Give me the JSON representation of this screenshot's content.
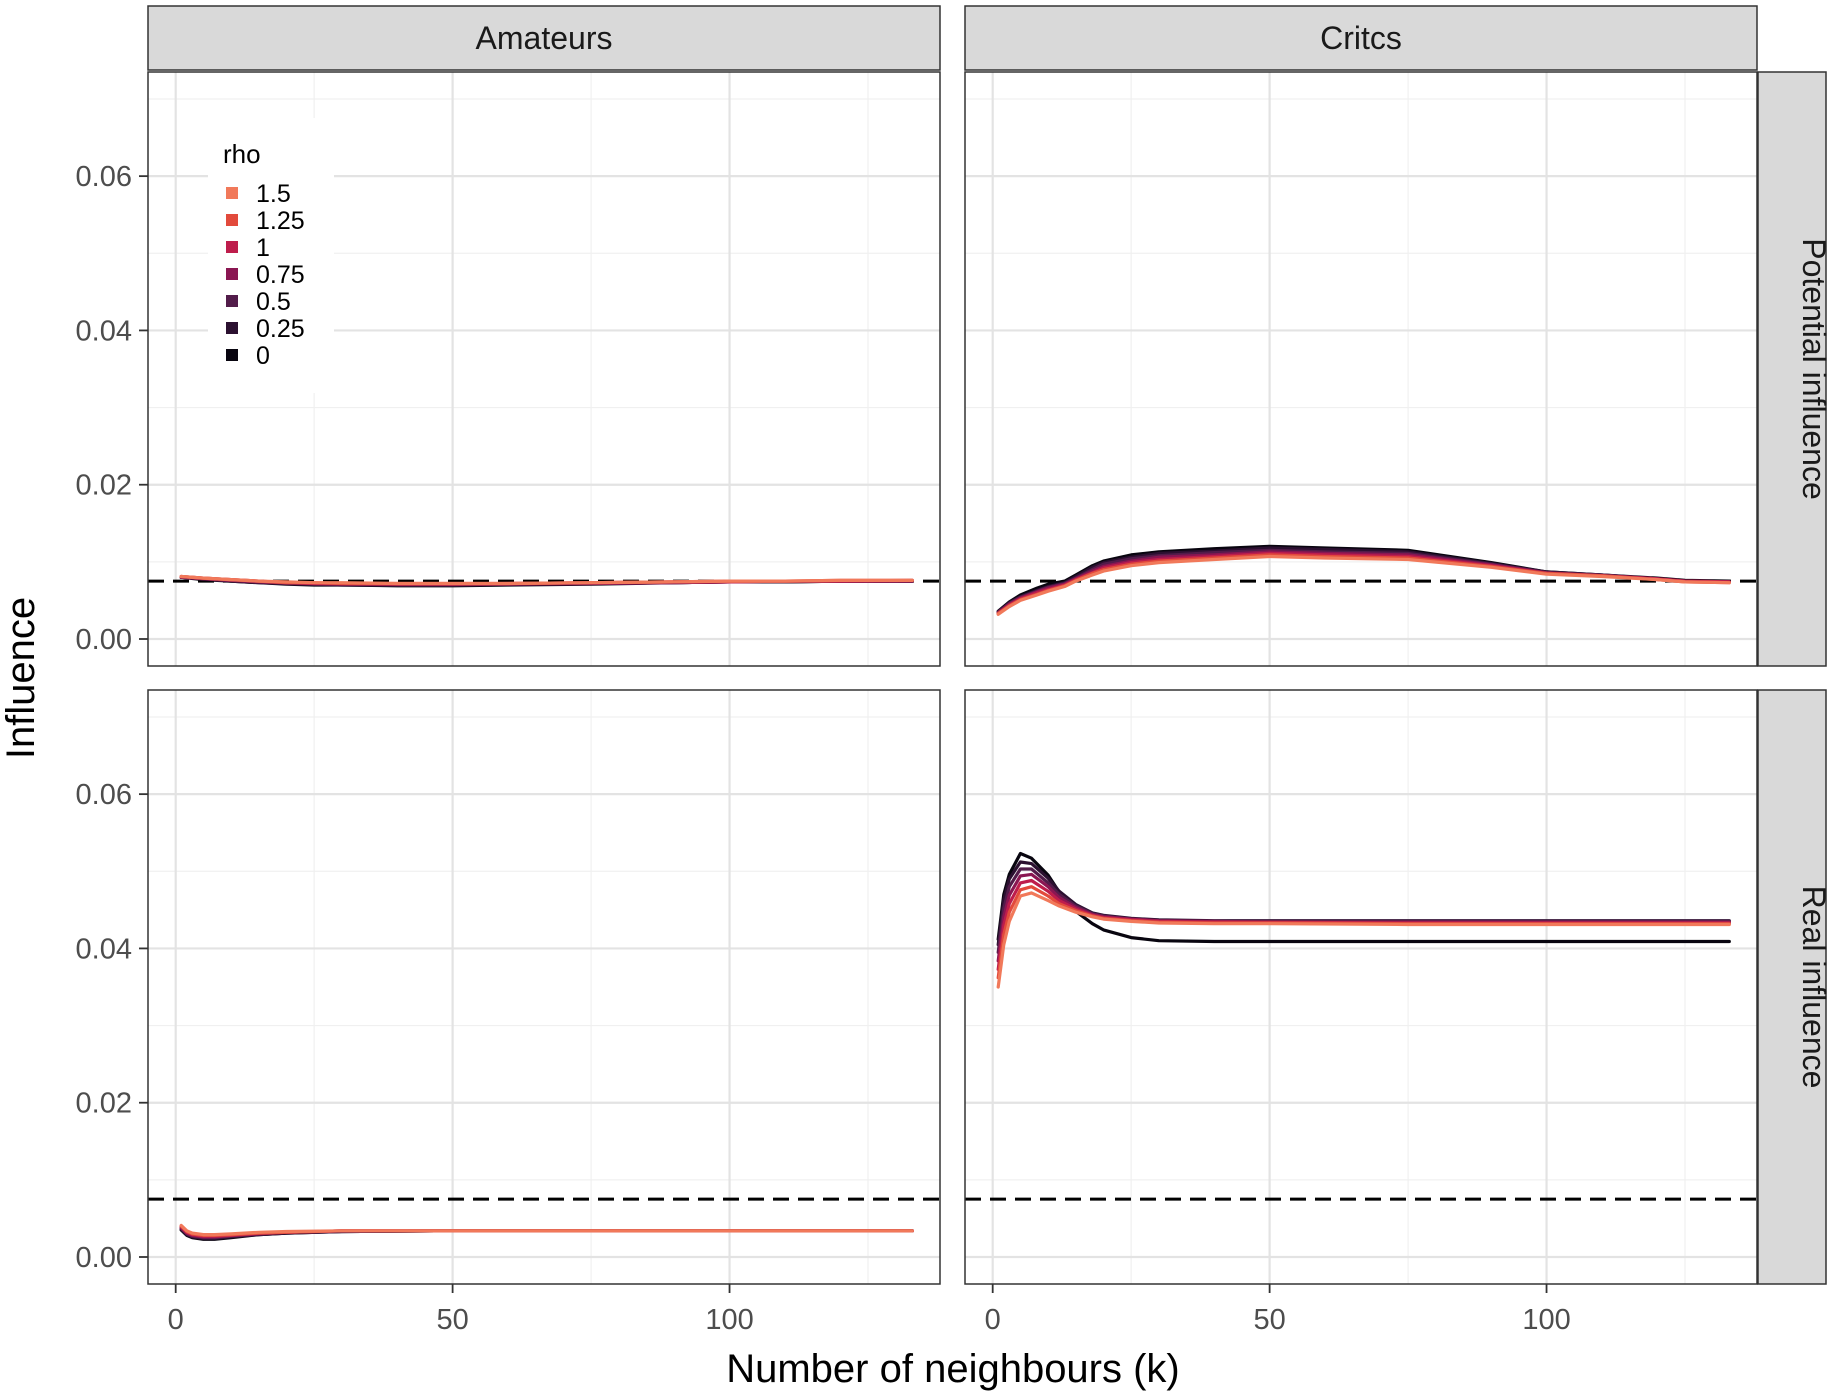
{
  "chart_data": {
    "type": "line",
    "xlabel": "Number of neighbours (k)",
    "ylabel": "Influence",
    "xlim": [
      -5,
      138
    ],
    "ylim": [
      -0.0035,
      0.0735
    ],
    "x_ticks": [
      "0",
      "50",
      "100"
    ],
    "y_ticks": [
      "0.00",
      "0.02",
      "0.04",
      "0.06"
    ],
    "grid": true,
    "legend": {
      "title": "rho",
      "placement": "top-left inside first panel"
    },
    "columns": [
      "Amateurs",
      "Critcs"
    ],
    "rows": [
      "Potential influence",
      "Real influence"
    ],
    "reference_line": {
      "y": 0.0075,
      "style": "dashed",
      "color": "#000000"
    },
    "series_styles": [
      {
        "name": "1.5",
        "color": "#F1795A"
      },
      {
        "name": "1.25",
        "color": "#E24A3C"
      },
      {
        "name": "1",
        "color": "#BE1D4C"
      },
      {
        "name": "0.75",
        "color": "#8A1652"
      },
      {
        "name": "0.5",
        "color": "#521C4A"
      },
      {
        "name": "0.25",
        "color": "#2B1030"
      },
      {
        "name": "0",
        "color": "#08050F"
      }
    ],
    "panels": [
      {
        "column": "Amateurs",
        "row": "Potential influence",
        "x": [
          1,
          5,
          10,
          15,
          20,
          25,
          30,
          40,
          50,
          60,
          75,
          90,
          100,
          110,
          120,
          133
        ],
        "series": [
          {
            "name": "1.5",
            "values": [
              0.0081,
              0.0079,
              0.0077,
              0.0075,
              0.0074,
              0.0073,
              0.0073,
              0.0072,
              0.0072,
              0.0072,
              0.0073,
              0.0074,
              0.0075,
              0.0075,
              0.0076,
              0.0076
            ]
          },
          {
            "name": "1.25",
            "values": [
              0.0081,
              0.0079,
              0.0077,
              0.0075,
              0.0073,
              0.0073,
              0.0072,
              0.0072,
              0.0072,
              0.0072,
              0.0073,
              0.0074,
              0.0075,
              0.0075,
              0.0076,
              0.0076
            ]
          },
          {
            "name": "1",
            "values": [
              0.0081,
              0.0079,
              0.0077,
              0.0075,
              0.0073,
              0.0072,
              0.0072,
              0.0071,
              0.0071,
              0.0072,
              0.0073,
              0.0074,
              0.0074,
              0.0075,
              0.0075,
              0.0076
            ]
          },
          {
            "name": "0.75",
            "values": [
              0.008,
              0.0078,
              0.0076,
              0.0074,
              0.0073,
              0.0072,
              0.0071,
              0.0071,
              0.0071,
              0.0071,
              0.0072,
              0.0073,
              0.0074,
              0.0075,
              0.0075,
              0.0075
            ]
          },
          {
            "name": "0.5",
            "values": [
              0.008,
              0.0078,
              0.0076,
              0.0074,
              0.0072,
              0.0071,
              0.0071,
              0.007,
              0.007,
              0.0071,
              0.0072,
              0.0073,
              0.0074,
              0.0075,
              0.0075,
              0.0075
            ]
          },
          {
            "name": "0.25",
            "values": [
              0.008,
              0.0078,
              0.0075,
              0.0073,
              0.0072,
              0.0071,
              0.007,
              0.007,
              0.007,
              0.0071,
              0.0072,
              0.0073,
              0.0074,
              0.0074,
              0.0075,
              0.0075
            ]
          },
          {
            "name": "0",
            "values": [
              0.008,
              0.0077,
              0.0075,
              0.0073,
              0.0071,
              0.007,
              0.007,
              0.0069,
              0.0069,
              0.007,
              0.0071,
              0.0073,
              0.0074,
              0.0074,
              0.0075,
              0.0075
            ]
          }
        ]
      },
      {
        "column": "Critcs",
        "row": "Potential influence",
        "x": [
          1,
          3,
          5,
          8,
          10,
          13,
          15,
          18,
          20,
          25,
          30,
          40,
          50,
          60,
          75,
          90,
          100,
          110,
          120,
          125,
          133
        ],
        "series": [
          {
            "name": "1.5",
            "values": [
              0.0032,
              0.0042,
              0.005,
              0.0057,
              0.0062,
              0.0068,
              0.0075,
              0.0083,
              0.0088,
              0.0095,
              0.0099,
              0.0103,
              0.0107,
              0.0105,
              0.0103,
              0.0093,
              0.0084,
              0.0081,
              0.0077,
              0.0074,
              0.0073
            ]
          },
          {
            "name": "1.25",
            "values": [
              0.0033,
              0.0043,
              0.0051,
              0.0058,
              0.0063,
              0.0069,
              0.0076,
              0.0085,
              0.009,
              0.0097,
              0.0101,
              0.0105,
              0.0109,
              0.0107,
              0.0105,
              0.0094,
              0.0085,
              0.0082,
              0.0077,
              0.0074,
              0.0073
            ]
          },
          {
            "name": "1",
            "values": [
              0.0033,
              0.0044,
              0.0052,
              0.006,
              0.0064,
              0.007,
              0.0077,
              0.0086,
              0.0092,
              0.0099,
              0.0103,
              0.0107,
              0.0111,
              0.0109,
              0.0107,
              0.0095,
              0.0085,
              0.0082,
              0.0078,
              0.0075,
              0.0074
            ]
          },
          {
            "name": "0.75",
            "values": [
              0.0034,
              0.0045,
              0.0053,
              0.0061,
              0.0066,
              0.0071,
              0.0078,
              0.0088,
              0.0094,
              0.0101,
              0.0106,
              0.0109,
              0.0113,
              0.0111,
              0.0109,
              0.0096,
              0.0086,
              0.0082,
              0.0078,
              0.0075,
              0.0074
            ]
          },
          {
            "name": "0.5",
            "values": [
              0.0035,
              0.0046,
              0.0054,
              0.0062,
              0.0067,
              0.0072,
              0.0079,
              0.009,
              0.0097,
              0.0104,
              0.0108,
              0.0112,
              0.0115,
              0.0113,
              0.0111,
              0.0097,
              0.0086,
              0.0083,
              0.0078,
              0.0075,
              0.0074
            ]
          },
          {
            "name": "0.25",
            "values": [
              0.0035,
              0.0047,
              0.0055,
              0.0063,
              0.0068,
              0.0073,
              0.0081,
              0.0093,
              0.0099,
              0.0106,
              0.0111,
              0.0114,
              0.0118,
              0.0116,
              0.0113,
              0.0098,
              0.0087,
              0.0083,
              0.0078,
              0.0075,
              0.0074
            ]
          },
          {
            "name": "0",
            "values": [
              0.0036,
              0.0048,
              0.0057,
              0.0066,
              0.0071,
              0.0075,
              0.0083,
              0.0095,
              0.0101,
              0.0109,
              0.0113,
              0.0117,
              0.012,
              0.0118,
              0.0115,
              0.0099,
              0.0087,
              0.0083,
              0.0079,
              0.0076,
              0.0075
            ]
          }
        ]
      },
      {
        "column": "Amateurs",
        "row": "Real influence",
        "x": [
          1,
          2,
          3,
          5,
          7,
          10,
          15,
          20,
          30,
          50,
          75,
          100,
          133
        ],
        "series": [
          {
            "name": "1.5",
            "values": [
              0.0041,
              0.0034,
              0.0031,
              0.0029,
              0.0029,
              0.003,
              0.0032,
              0.0033,
              0.0034,
              0.0034,
              0.0034,
              0.0034,
              0.0034
            ]
          },
          {
            "name": "1.25",
            "values": [
              0.004,
              0.0033,
              0.003,
              0.0028,
              0.0028,
              0.0029,
              0.0031,
              0.0032,
              0.0034,
              0.0034,
              0.0034,
              0.0034,
              0.0034
            ]
          },
          {
            "name": "1",
            "values": [
              0.0039,
              0.0032,
              0.0029,
              0.0027,
              0.0027,
              0.0028,
              0.0031,
              0.0032,
              0.0034,
              0.0034,
              0.0034,
              0.0034,
              0.0034
            ]
          },
          {
            "name": "0.75",
            "values": [
              0.0038,
              0.0031,
              0.0028,
              0.0026,
              0.0026,
              0.0028,
              0.003,
              0.0032,
              0.0034,
              0.0034,
              0.0034,
              0.0034,
              0.0034
            ]
          },
          {
            "name": "0.5",
            "values": [
              0.0037,
              0.003,
              0.0027,
              0.0025,
              0.0025,
              0.0027,
              0.003,
              0.0032,
              0.0033,
              0.0034,
              0.0034,
              0.0034,
              0.0034
            ]
          },
          {
            "name": "0.25",
            "values": [
              0.0036,
              0.0029,
              0.0026,
              0.0024,
              0.0024,
              0.0026,
              0.0029,
              0.0031,
              0.0033,
              0.0034,
              0.0034,
              0.0034,
              0.0034
            ]
          },
          {
            "name": "0",
            "values": [
              0.0035,
              0.0028,
              0.0025,
              0.0023,
              0.0023,
              0.0025,
              0.0029,
              0.0031,
              0.0033,
              0.0034,
              0.0034,
              0.0034,
              0.0034
            ]
          }
        ]
      },
      {
        "column": "Critcs",
        "row": "Real influence",
        "x": [
          1,
          2,
          3,
          5,
          7,
          10,
          12,
          15,
          18,
          20,
          25,
          30,
          40,
          50,
          75,
          100,
          133
        ],
        "series": [
          {
            "name": "1.5",
            "values": [
              0.035,
              0.0405,
              0.0435,
              0.0468,
              0.0472,
              0.0462,
              0.0455,
              0.0447,
              0.0441,
              0.0438,
              0.0435,
              0.0433,
              0.0432,
              0.0432,
              0.0431,
              0.0431,
              0.0431
            ]
          },
          {
            "name": "1.25",
            "values": [
              0.0362,
              0.0418,
              0.0447,
              0.0476,
              0.048,
              0.0468,
              0.0458,
              0.0449,
              0.0442,
              0.0439,
              0.0436,
              0.0434,
              0.0433,
              0.0433,
              0.0432,
              0.0432,
              0.0432
            ]
          },
          {
            "name": "1",
            "values": [
              0.0373,
              0.043,
              0.0458,
              0.0485,
              0.0488,
              0.0474,
              0.0462,
              0.0451,
              0.0443,
              0.044,
              0.0437,
              0.0435,
              0.0434,
              0.0434,
              0.0433,
              0.0433,
              0.0433
            ]
          },
          {
            "name": "0.75",
            "values": [
              0.0384,
              0.0441,
              0.0469,
              0.0494,
              0.0496,
              0.048,
              0.0466,
              0.0453,
              0.0444,
              0.0441,
              0.0438,
              0.0436,
              0.0435,
              0.0434,
              0.0434,
              0.0434,
              0.0434
            ]
          },
          {
            "name": "0.5",
            "values": [
              0.0395,
              0.0452,
              0.048,
              0.0503,
              0.0503,
              0.0485,
              0.047,
              0.0455,
              0.0445,
              0.0442,
              0.0438,
              0.0436,
              0.0435,
              0.0435,
              0.0435,
              0.0435,
              0.0435
            ]
          },
          {
            "name": "0.25",
            "values": [
              0.0405,
              0.0463,
              0.049,
              0.0512,
              0.051,
              0.0491,
              0.0474,
              0.0457,
              0.0446,
              0.0443,
              0.0439,
              0.0437,
              0.0436,
              0.0436,
              0.0436,
              0.0436,
              0.0436
            ]
          },
          {
            "name": "0",
            "values": [
              0.0412,
              0.047,
              0.0496,
              0.0523,
              0.0517,
              0.0495,
              0.0473,
              0.0448,
              0.0432,
              0.0424,
              0.0414,
              0.041,
              0.0409,
              0.0409,
              0.0409,
              0.0409,
              0.0409
            ]
          }
        ]
      }
    ]
  }
}
